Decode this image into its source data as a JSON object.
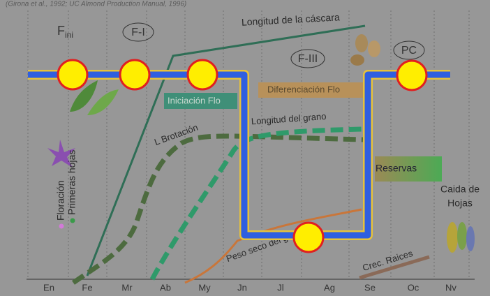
{
  "header": {
    "source": "(Girona et al., 1992; UC Almond Production Manual, 1996)"
  },
  "phases": {
    "fini": {
      "base": "F",
      "sub": "ini"
    },
    "f1": "F-I",
    "f3": "F-III",
    "pc": "PC"
  },
  "processes": {
    "shell_length": "Longitud de la cáscara",
    "flower_initiation": "Iniciación Flo",
    "flower_differentiation": "Diferenciación Flo",
    "kernel_length": "Longitud del grano",
    "budbreak": "L Brotación",
    "reserves": "Reservas",
    "leaf_fall": [
      "Caida de",
      "Hojas"
    ],
    "kernel_dry_weight": "Peso seco del grano",
    "root_growth": "Crec. Raices"
  },
  "legend": {
    "flowering": "Floración",
    "first_leaves": "Primeras hojas"
  },
  "months": [
    "En",
    "Fe",
    "Mr",
    "Ab",
    "My",
    "Jn",
    "Jl",
    "Ag",
    "Se",
    "Oc",
    "Nv"
  ]
}
